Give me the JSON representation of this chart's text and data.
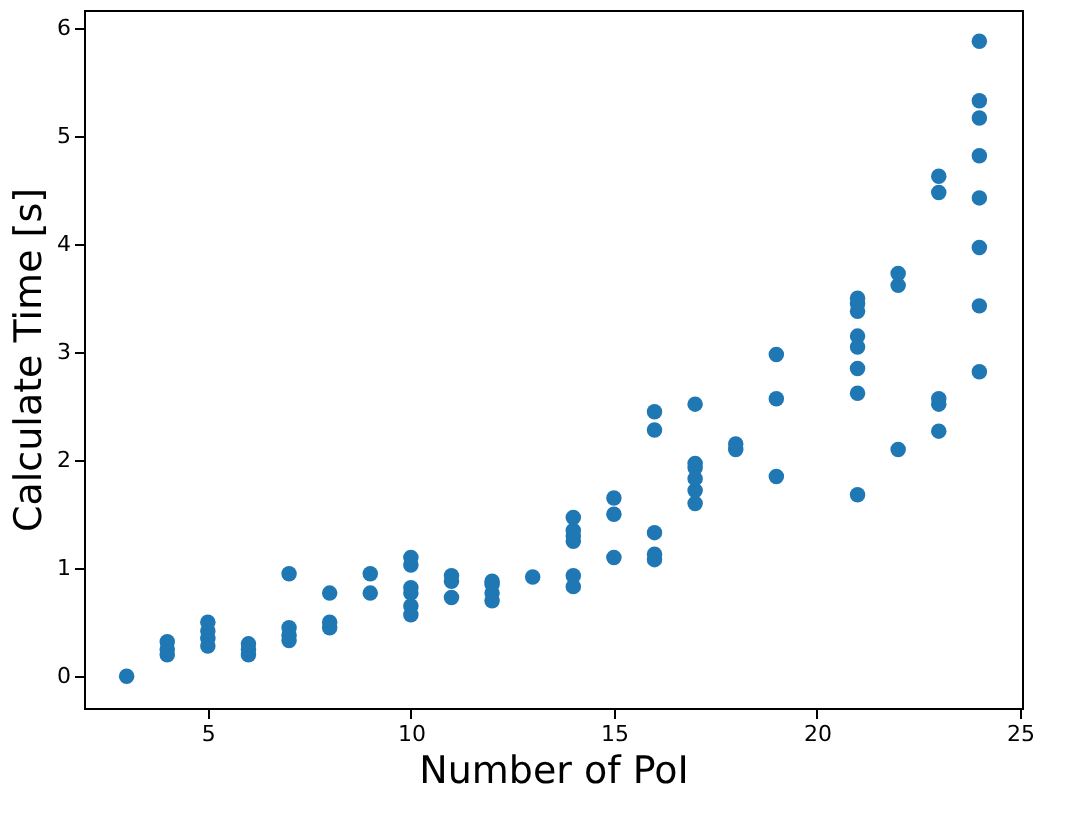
{
  "chart_data": {
    "type": "scatter",
    "xlabel": "Number of PoI",
    "ylabel": "Calculate Time [s]",
    "marker": "circle",
    "grid": false,
    "xlim": [
      1.95,
      25.05
    ],
    "ylim": [
      -0.294,
      6.17
    ],
    "xticks": [
      5,
      10,
      15,
      20,
      25
    ],
    "yticks": [
      0,
      1,
      2,
      3,
      4,
      5,
      6
    ],
    "series": [
      {
        "color": "#1f77b4",
        "x": [
          3,
          4,
          4,
          4,
          5,
          5,
          5,
          5,
          6,
          6,
          6,
          7,
          7,
          7,
          7,
          8,
          8,
          8,
          9,
          9,
          10,
          10,
          10,
          10,
          10,
          10,
          11,
          11,
          11,
          12,
          12,
          12,
          12,
          13,
          14,
          14,
          14,
          14,
          14,
          14,
          15,
          15,
          15,
          16,
          16,
          16,
          16,
          16,
          17,
          17,
          17,
          17,
          17,
          17,
          18,
          18,
          19,
          19,
          19,
          21,
          21,
          21,
          21,
          21,
          21,
          21,
          21,
          22,
          22,
          22,
          23,
          23,
          23,
          23,
          23,
          24,
          24,
          24,
          24,
          24,
          24,
          24,
          24
        ],
        "values": [
          0,
          0.2,
          0.25,
          0.32,
          0.28,
          0.35,
          0.42,
          0.5,
          0.2,
          0.25,
          0.3,
          0.33,
          0.38,
          0.45,
          0.95,
          0.45,
          0.5,
          0.77,
          0.77,
          0.95,
          0.57,
          0.65,
          0.77,
          0.82,
          1.03,
          1.1,
          0.73,
          0.88,
          0.93,
          0.7,
          0.77,
          0.85,
          0.88,
          0.92,
          0.83,
          0.93,
          1.25,
          1.3,
          1.35,
          1.47,
          1.1,
          1.5,
          1.65,
          1.08,
          1.13,
          1.33,
          2.28,
          2.45,
          1.6,
          1.72,
          1.83,
          1.93,
          1.97,
          2.52,
          2.1,
          2.15,
          1.85,
          2.57,
          2.98,
          1.68,
          2.62,
          2.85,
          3.05,
          3.15,
          3.38,
          3.45,
          3.5,
          2.1,
          3.62,
          3.73,
          2.27,
          2.52,
          2.57,
          4.48,
          4.63,
          2.82,
          3.43,
          3.97,
          4.43,
          4.82,
          5.17,
          5.33,
          5.88
        ]
      }
    ]
  }
}
